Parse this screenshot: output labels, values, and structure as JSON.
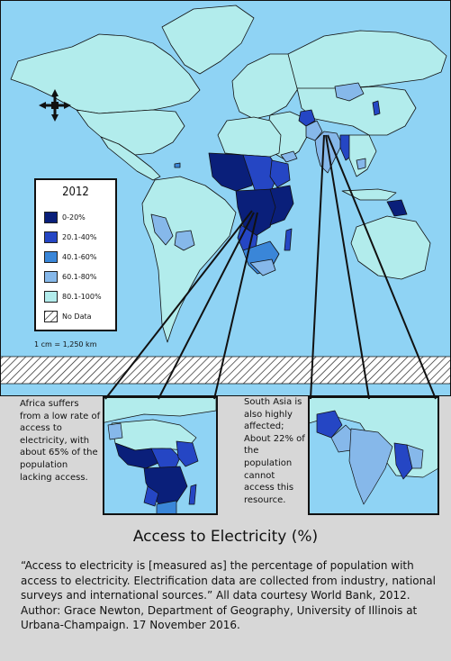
{
  "legend": {
    "title": "2012",
    "items": [
      {
        "label": "0-20%",
        "color": "#0a1f7a"
      },
      {
        "label": "20.1-40%",
        "color": "#2546c4"
      },
      {
        "label": "40.1-60%",
        "color": "#3a86d8"
      },
      {
        "label": "60.1-80%",
        "color": "#86b8ea"
      },
      {
        "label": "80.1-100%",
        "color": "#b2ecec"
      },
      {
        "label": "No Data",
        "color": "hatch"
      }
    ]
  },
  "scale_text": "1 cm = 1,250 km",
  "insets": {
    "africa_note": "Africa suffers from a low rate of access to electricity, with about 65% of the population lacking access.",
    "south_asia_note": "South Asia is also highly affected; About 22% of the population cannot access this resource."
  },
  "title": "Access to Electricity (%)",
  "caption": "“Access to electricity is [measured as] the percentage of population with access to electricity. Electrification data are collected from industry, national surveys and international sources.” All data courtesy World Bank, 2012. Author: Grace Newton, Department of Geography, University of Illinois at Urbana-Champaign. 17 November 2016.",
  "colors": {
    "ocean": "#8fd3f4",
    "page_background": "#d7d7d7",
    "border": "#111111"
  },
  "icons": [
    "compass-rose-icon"
  ]
}
